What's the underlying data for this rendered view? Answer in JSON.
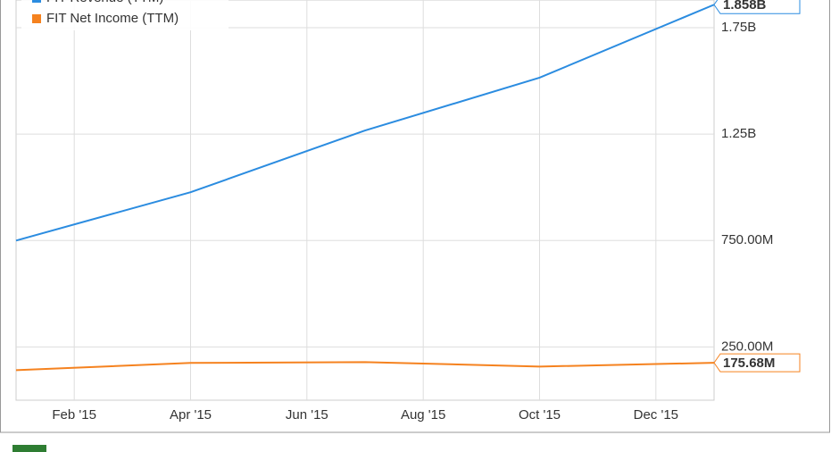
{
  "chart_data": {
    "type": "line",
    "x": [
      0,
      3,
      6,
      9,
      12
    ],
    "xlim": [
      0,
      12
    ],
    "xticks": [
      {
        "value": 1,
        "label": "Feb '15"
      },
      {
        "value": 3,
        "label": "Apr '15"
      },
      {
        "value": 5,
        "label": "Jun '15"
      },
      {
        "value": 7,
        "label": "Aug '15"
      },
      {
        "value": 9,
        "label": "Oct '15"
      },
      {
        "value": 11,
        "label": "Dec '15"
      }
    ],
    "ylim": [
      0,
      1880000000
    ],
    "yticks": [
      {
        "value": 250000000,
        "label": "250.00M"
      },
      {
        "value": 750000000,
        "label": "750.00M"
      },
      {
        "value": 1250000000,
        "label": "1.25B"
      },
      {
        "value": 1750000000,
        "label": "1.75B"
      }
    ],
    "grid": true,
    "series": [
      {
        "name": "FIT Revenue (TTM)",
        "color": "#2b8ce0",
        "values": [
          750000000,
          977000000,
          1267000000,
          1515000000,
          1858000000
        ],
        "value_labels": [
          null,
          null,
          null,
          null,
          "1.858B"
        ]
      },
      {
        "name": "FIT Net Income (TTM)",
        "color": "#f5821f",
        "values": [
          141000000,
          175000000,
          179000000,
          158000000,
          175680000
        ],
        "value_labels": [
          null,
          null,
          null,
          null,
          "175.68M"
        ]
      }
    ]
  }
}
